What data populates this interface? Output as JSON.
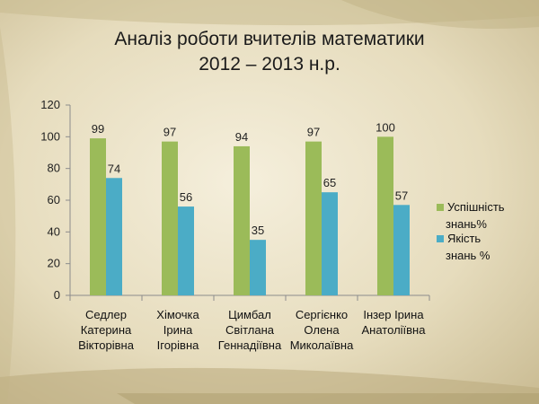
{
  "slide": {
    "title_line1": "Аналіз роботи вчителів математики",
    "title_line2": "2012 – 2013 н.р."
  },
  "chart_data": {
    "type": "bar",
    "title": "Аналіз роботи вчителів математики 2012 – 2013 н.р.",
    "categories": [
      [
        "Седлер",
        "Катерина",
        "Вікторівна"
      ],
      [
        "Хімочка",
        "Ірина",
        "Ігорівна"
      ],
      [
        "Цимбал",
        "Світлана",
        "Геннадіївна"
      ],
      [
        "Сергієнко",
        "Олена",
        "Миколаївна"
      ],
      [
        "Інзер Ірина",
        "Анатоліївна"
      ]
    ],
    "series": [
      {
        "name_lines": [
          "Успішність",
          "знань%"
        ],
        "color": "#9bbb59",
        "values": [
          99,
          97,
          94,
          97,
          100
        ]
      },
      {
        "name_lines": [
          "Якість",
          "знань %"
        ],
        "color": "#4bacc6",
        "values": [
          74,
          56,
          35,
          65,
          57
        ]
      }
    ],
    "ylim": [
      0,
      120
    ],
    "yticks": [
      0,
      20,
      40,
      60,
      80,
      100,
      120
    ],
    "grid": false,
    "legend_position": "right",
    "data_labels": true
  }
}
